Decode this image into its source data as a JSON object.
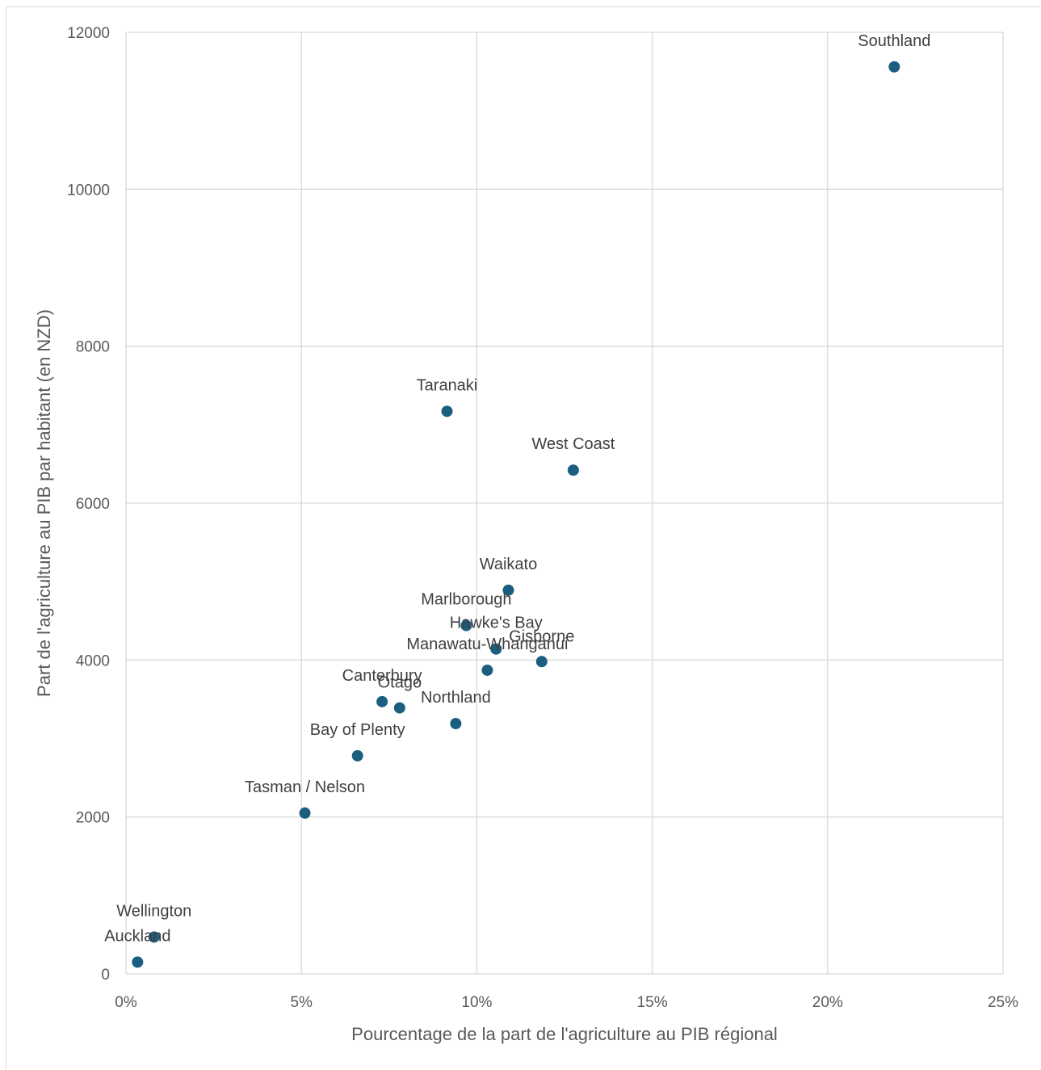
{
  "chart_data": {
    "type": "scatter",
    "title": "",
    "xlabel": "Pourcentage de la part de l'agriculture au PIB régional",
    "ylabel": "Part de l'agriculture au PIB par habitant (en NZD)",
    "xlim": [
      0,
      0.25
    ],
    "ylim": [
      0,
      12000
    ],
    "x_ticks": [
      0,
      0.05,
      0.1,
      0.15,
      0.2,
      0.25
    ],
    "x_tick_labels": [
      "0%",
      "5%",
      "10%",
      "15%",
      "20%",
      "25%"
    ],
    "y_ticks": [
      0,
      2000,
      4000,
      6000,
      8000,
      10000,
      12000
    ],
    "y_tick_labels": [
      "0",
      "2000",
      "4000",
      "6000",
      "8000",
      "10000",
      "12000"
    ],
    "grid": true,
    "marker_color": "#1b5e80",
    "points": [
      {
        "label": "Southland",
        "x": 0.219,
        "y": 11560
      },
      {
        "label": "Taranaki",
        "x": 0.0915,
        "y": 7170
      },
      {
        "label": "West Coast",
        "x": 0.1275,
        "y": 6420
      },
      {
        "label": "Waikato",
        "x": 0.109,
        "y": 4890
      },
      {
        "label": "Marlborough",
        "x": 0.097,
        "y": 4440
      },
      {
        "label": "Hawke's Bay",
        "x": 0.1055,
        "y": 4140
      },
      {
        "label": "Gisborne",
        "x": 0.1185,
        "y": 3980
      },
      {
        "label": "Manawatu-Whanganui",
        "x": 0.103,
        "y": 3870
      },
      {
        "label": "Canterbury",
        "x": 0.073,
        "y": 3470
      },
      {
        "label": "Otago",
        "x": 0.078,
        "y": 3390
      },
      {
        "label": "Northland",
        "x": 0.094,
        "y": 3190
      },
      {
        "label": "Bay of Plenty",
        "x": 0.066,
        "y": 2780
      },
      {
        "label": "Tasman / Nelson",
        "x": 0.051,
        "y": 2050
      },
      {
        "label": "Wellington",
        "x": 0.008,
        "y": 470
      },
      {
        "label": "Auckland",
        "x": 0.0033,
        "y": 150
      }
    ]
  }
}
